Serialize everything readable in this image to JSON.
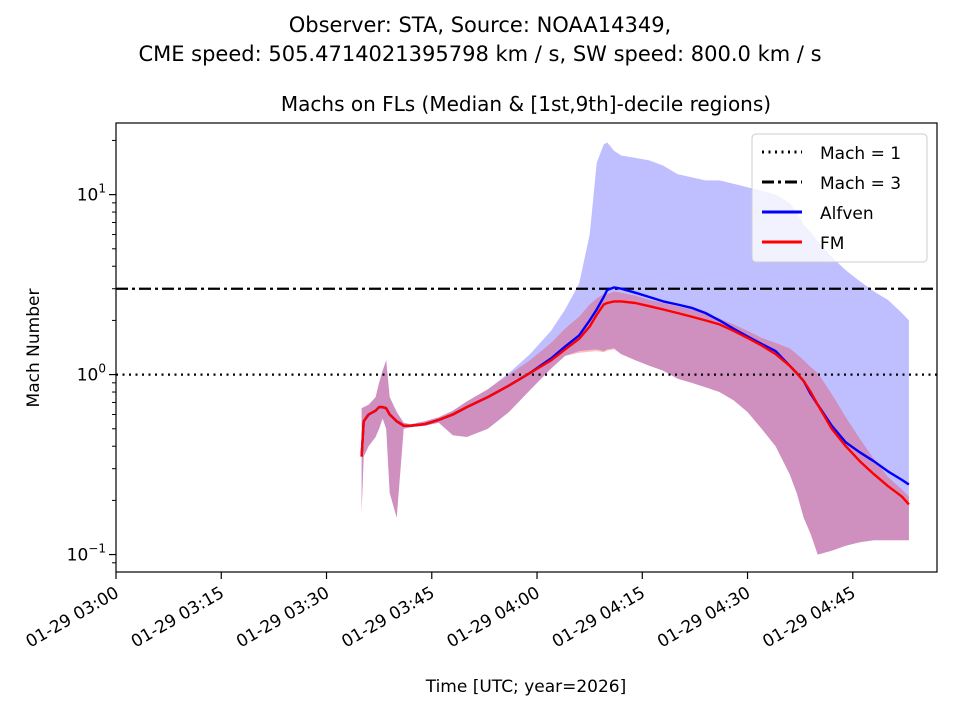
{
  "suptitle_line1": "Observer: STA, Source: NOAA14349,",
  "suptitle_line2": "CME speed: 505.4714021395798 km / s, SW speed: 800.0 km / s",
  "chart_data": {
    "type": "line",
    "title": "Machs on FLs (Median & [1st,9th]-decile regions)",
    "xlabel": "Time [UTC; year=2026]",
    "ylabel": "Mach Number",
    "yscale": "log",
    "ylim": [
      0.08,
      25
    ],
    "xlim_minutes": [
      0,
      117
    ],
    "x_ticks": [
      {
        "t": 0,
        "label": "01-29 03:00"
      },
      {
        "t": 15,
        "label": "01-29 03:15"
      },
      {
        "t": 30,
        "label": "01-29 03:30"
      },
      {
        "t": 45,
        "label": "01-29 03:45"
      },
      {
        "t": 60,
        "label": "01-29 04:00"
      },
      {
        "t": 75,
        "label": "01-29 04:15"
      },
      {
        "t": 90,
        "label": "01-29 04:30"
      },
      {
        "t": 105,
        "label": "01-29 04:45"
      }
    ],
    "y_ticks": [
      {
        "v": 0.1,
        "base": "10",
        "exp": "−1"
      },
      {
        "v": 1,
        "base": "10",
        "exp": "0"
      },
      {
        "v": 10,
        "base": "10",
        "exp": "1"
      }
    ],
    "hlines": [
      {
        "name": "Mach = 1",
        "y": 1,
        "style": "dotted",
        "color": "#000000"
      },
      {
        "name": "Mach = 3",
        "y": 3,
        "style": "dashdot",
        "color": "#000000"
      }
    ],
    "series": [
      {
        "name": "Alfven",
        "color": "#0000ff",
        "band_color": "#0000ff",
        "band_opacity": 0.25,
        "x": [
          35,
          35.3,
          36,
          37,
          37.5,
          38,
          38.5,
          39,
          40,
          41,
          42,
          44,
          46,
          48,
          50,
          53,
          56,
          59,
          62,
          64,
          66,
          67.5,
          68.5,
          69.5,
          70,
          71,
          72,
          74,
          76,
          78,
          80,
          82,
          84,
          86,
          88,
          90,
          92,
          94,
          96,
          97,
          98,
          99,
          100,
          102,
          104,
          106,
          108,
          110,
          112,
          113
        ],
        "median": [
          0.35,
          0.55,
          0.6,
          0.63,
          0.66,
          0.66,
          0.65,
          0.6,
          0.55,
          0.52,
          0.52,
          0.53,
          0.56,
          0.6,
          0.66,
          0.75,
          0.87,
          1.02,
          1.23,
          1.43,
          1.65,
          2.0,
          2.3,
          2.7,
          2.95,
          3.05,
          3.0,
          2.85,
          2.7,
          2.55,
          2.45,
          2.35,
          2.2,
          2.0,
          1.8,
          1.63,
          1.48,
          1.35,
          1.12,
          1.02,
          0.92,
          0.78,
          0.68,
          0.52,
          0.42,
          0.37,
          0.33,
          0.29,
          0.26,
          0.245
        ],
        "lower": [
          0.17,
          0.35,
          0.4,
          0.45,
          0.5,
          0.57,
          0.5,
          0.22,
          0.16,
          0.5,
          0.51,
          0.52,
          0.54,
          0.46,
          0.45,
          0.5,
          0.62,
          0.82,
          1.08,
          1.27,
          1.35,
          1.37,
          1.38,
          1.35,
          1.38,
          1.4,
          1.3,
          1.2,
          1.12,
          1.05,
          0.95,
          0.9,
          0.85,
          0.8,
          0.72,
          0.62,
          0.5,
          0.4,
          0.28,
          0.22,
          0.16,
          0.13,
          0.1,
          0.105,
          0.112,
          0.117,
          0.12,
          0.12,
          0.12,
          0.12
        ],
        "upper": [
          0.65,
          0.66,
          0.68,
          0.75,
          0.9,
          1.05,
          1.2,
          0.75,
          0.62,
          0.54,
          0.53,
          0.55,
          0.58,
          0.63,
          0.71,
          0.83,
          1.02,
          1.3,
          1.75,
          2.3,
          3.2,
          6.0,
          15.0,
          19.0,
          19.5,
          17.5,
          16.5,
          16.0,
          15.5,
          14.5,
          13.0,
          12.5,
          12.0,
          12.0,
          11.5,
          11.0,
          10.5,
          10.0,
          9.0,
          8.0,
          6.8,
          6.2,
          5.5,
          4.5,
          3.8,
          3.3,
          2.9,
          2.6,
          2.2,
          2.0
        ]
      },
      {
        "name": "FM",
        "color": "#ff0000",
        "band_color": "#ff0000",
        "band_opacity": 0.25,
        "x": [
          35,
          35.3,
          36,
          37,
          37.5,
          38,
          38.5,
          39,
          40,
          41,
          42,
          44,
          46,
          48,
          50,
          53,
          56,
          59,
          62,
          64,
          66,
          67.5,
          68.5,
          69.5,
          70,
          71,
          72,
          74,
          76,
          78,
          80,
          82,
          84,
          86,
          88,
          90,
          92,
          94,
          96,
          97,
          98,
          99,
          100,
          102,
          104,
          106,
          108,
          110,
          112,
          113
        ],
        "median": [
          0.35,
          0.55,
          0.6,
          0.63,
          0.66,
          0.66,
          0.65,
          0.6,
          0.55,
          0.52,
          0.52,
          0.53,
          0.56,
          0.6,
          0.66,
          0.75,
          0.87,
          1.02,
          1.2,
          1.38,
          1.58,
          1.85,
          2.15,
          2.45,
          2.5,
          2.55,
          2.55,
          2.5,
          2.4,
          2.3,
          2.2,
          2.1,
          2.0,
          1.9,
          1.75,
          1.6,
          1.45,
          1.3,
          1.12,
          1.02,
          0.92,
          0.8,
          0.68,
          0.5,
          0.4,
          0.33,
          0.28,
          0.24,
          0.21,
          0.19
        ],
        "lower": [
          0.17,
          0.35,
          0.4,
          0.45,
          0.5,
          0.57,
          0.5,
          0.22,
          0.16,
          0.5,
          0.51,
          0.52,
          0.54,
          0.46,
          0.45,
          0.5,
          0.62,
          0.82,
          1.08,
          1.27,
          1.32,
          1.34,
          1.35,
          1.33,
          1.36,
          1.38,
          1.3,
          1.2,
          1.12,
          1.05,
          0.95,
          0.9,
          0.85,
          0.8,
          0.72,
          0.62,
          0.5,
          0.4,
          0.28,
          0.22,
          0.16,
          0.13,
          0.1,
          0.105,
          0.112,
          0.117,
          0.12,
          0.12,
          0.12,
          0.12
        ],
        "upper": [
          0.65,
          0.66,
          0.68,
          0.75,
          0.9,
          1.05,
          1.2,
          0.75,
          0.62,
          0.54,
          0.53,
          0.55,
          0.58,
          0.63,
          0.71,
          0.83,
          1.0,
          1.2,
          1.5,
          1.8,
          2.1,
          2.45,
          2.65,
          2.8,
          2.8,
          2.9,
          2.85,
          2.75,
          2.6,
          2.5,
          2.4,
          2.3,
          2.2,
          2.05,
          1.9,
          1.75,
          1.6,
          1.5,
          1.4,
          1.3,
          1.2,
          1.1,
          1.02,
          0.78,
          0.58,
          0.44,
          0.34,
          0.27,
          0.23,
          0.21
        ]
      }
    ],
    "legend_position": "top-right"
  }
}
